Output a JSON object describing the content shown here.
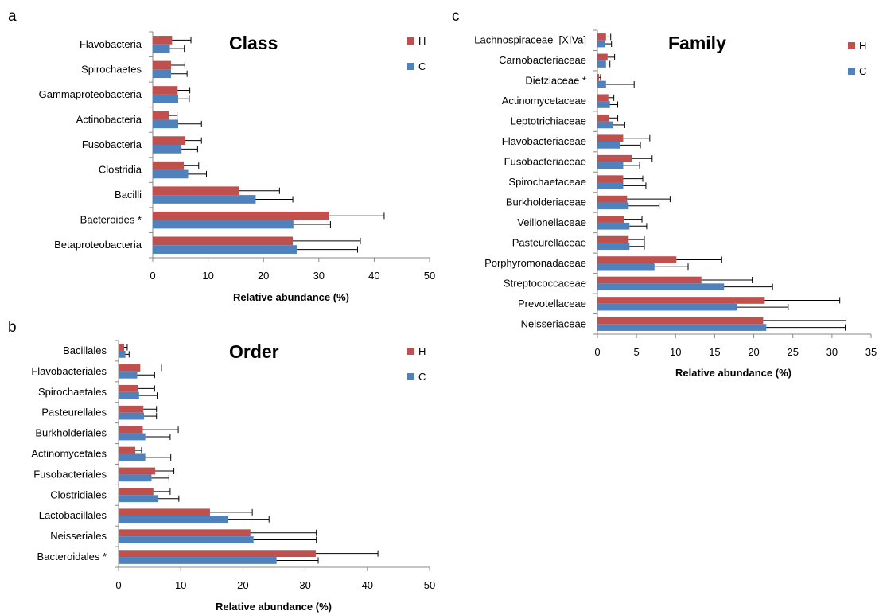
{
  "colors": {
    "H": "#c0504d",
    "C": "#4f81bd",
    "axis": "#888888",
    "error": "#000000"
  },
  "chart_data": [
    {
      "type": "bar",
      "orientation": "horizontal",
      "panel": "a",
      "title": "Class",
      "xlabel": "Relative abundance (%)",
      "xlim": [
        0,
        50
      ],
      "xticks": [
        "0",
        "10",
        "20",
        "30",
        "40",
        "50"
      ],
      "legend": {
        "placement": "top-right",
        "entries": [
          "H",
          "C"
        ]
      },
      "categories": [
        "Flavobacteria",
        "Spirochaetes",
        "Gammaproteobacteria",
        "Actinobacteria",
        "Fusobacteria",
        "Clostridia",
        "Bacilli",
        "Bacteroides *",
        "Betaproteobacteria"
      ],
      "series": [
        {
          "name": "H",
          "values": [
            3.5,
            3.3,
            4.5,
            2.9,
            5.9,
            5.6,
            15.6,
            31.8,
            25.3
          ],
          "errors": [
            3.4,
            2.5,
            2.2,
            1.5,
            2.9,
            2.7,
            7.3,
            10.0,
            12.2
          ]
        },
        {
          "name": "C",
          "values": [
            3.1,
            3.3,
            4.6,
            4.6,
            5.2,
            6.4,
            18.6,
            25.4,
            26.0
          ],
          "errors": [
            2.6,
            2.9,
            2.0,
            4.2,
            2.9,
            3.3,
            6.7,
            6.7,
            11.0
          ]
        }
      ]
    },
    {
      "type": "bar",
      "orientation": "horizontal",
      "panel": "b",
      "title": "Order",
      "xlabel": "Relative abundance (%)",
      "xlim": [
        0,
        50
      ],
      "xticks": [
        "0",
        "10",
        "20",
        "30",
        "40",
        "50"
      ],
      "legend": {
        "placement": "top-right",
        "entries": [
          "H",
          "C"
        ]
      },
      "categories": [
        "Bacillales",
        "Flavobacteriales",
        "Spirochaetales",
        "Pasteurellales",
        "Burkholderiales",
        "Actinomycetales",
        "Fusobacteriales",
        "Clostridiales",
        "Lactobacillales",
        "Neisseriales",
        "Bacteroidales *"
      ],
      "series": [
        {
          "name": "H",
          "values": [
            0.9,
            3.5,
            3.2,
            4.0,
            3.9,
            2.7,
            5.9,
            5.6,
            14.7,
            21.2,
            31.7
          ],
          "errors": [
            0.5,
            3.4,
            2.6,
            2.1,
            5.7,
            1.0,
            3.0,
            2.7,
            6.8,
            10.6,
            10.0
          ]
        },
        {
          "name": "C",
          "values": [
            1.1,
            3.0,
            3.3,
            4.1,
            4.3,
            4.3,
            5.3,
            6.4,
            17.6,
            21.7,
            25.4
          ],
          "errors": [
            0.6,
            2.8,
            2.9,
            2.0,
            4.0,
            4.1,
            2.8,
            3.3,
            6.6,
            10.1,
            6.7
          ]
        }
      ]
    },
    {
      "type": "bar",
      "orientation": "horizontal",
      "panel": "c",
      "title": "Family",
      "xlabel": "Relative abundance (%)",
      "xlim": [
        0,
        35
      ],
      "xticks": [
        "0",
        "5",
        "10",
        "15",
        "20",
        "25",
        "30",
        "35"
      ],
      "legend": {
        "placement": "top-right",
        "entries": [
          "H",
          "C"
        ]
      },
      "categories": [
        "Lachnospiraceae_[XIVa]",
        "Carnobacteriaceae",
        "Dietziaceae *",
        "Actinomycetaceae",
        "Leptotrichiaceae",
        "Flavobacteriaceae",
        "Fusobacteriaceae",
        "Spirochaetaceae",
        "Burkholderiaceae",
        "Veillonellaceae",
        "Pasteurellaceae",
        "Porphyromonadaceae",
        "Streptococcaceae",
        "Prevotellaceae",
        "Neisseriaceae"
      ],
      "series": [
        {
          "name": "H",
          "values": [
            1.1,
            1.3,
            0.2,
            1.4,
            1.5,
            3.3,
            4.4,
            3.3,
            3.8,
            3.4,
            4.0,
            10.1,
            13.3,
            21.4,
            21.2
          ],
          "errors": [
            0.6,
            0.9,
            0.2,
            0.7,
            1.1,
            3.4,
            2.6,
            2.5,
            5.5,
            2.3,
            2.0,
            5.8,
            6.5,
            9.6,
            10.6
          ]
        },
        {
          "name": "C",
          "values": [
            1.0,
            1.1,
            1.1,
            1.6,
            2.0,
            2.9,
            3.3,
            3.3,
            4.0,
            4.1,
            4.1,
            7.3,
            16.2,
            17.9,
            21.6
          ],
          "errors": [
            0.8,
            0.5,
            3.6,
            1.0,
            1.5,
            2.6,
            2.1,
            2.9,
            3.9,
            2.2,
            1.9,
            4.3,
            6.2,
            6.5,
            10.1
          ]
        }
      ]
    }
  ]
}
